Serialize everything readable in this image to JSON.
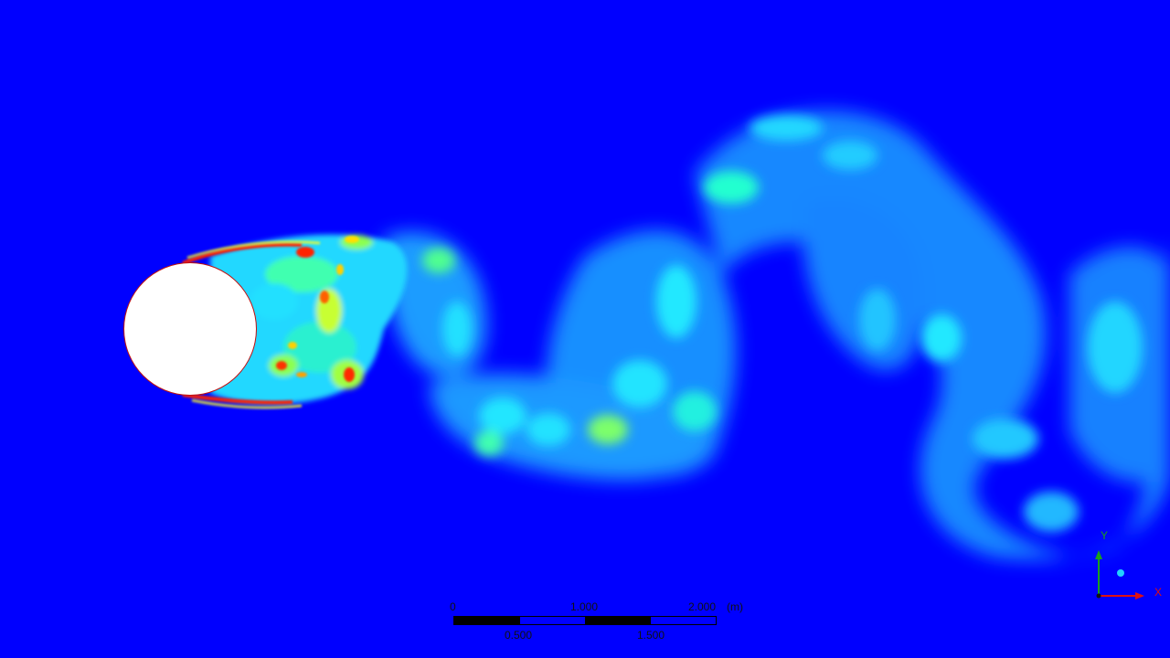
{
  "scene": {
    "description_colors": {
      "background": "#0000ff",
      "cylinder": "#ffffff",
      "low": "#00c8ff",
      "mid": "#00ff66",
      "high": "#ffff00",
      "max": "#ff0000"
    }
  },
  "scale_bar": {
    "top_ticks": [
      "0",
      "1.000",
      "2.000"
    ],
    "unit": "(m)",
    "bottom_ticks": [
      "0.500",
      "1.500"
    ]
  },
  "triad": {
    "x_label": "X",
    "y_label": "Y"
  }
}
